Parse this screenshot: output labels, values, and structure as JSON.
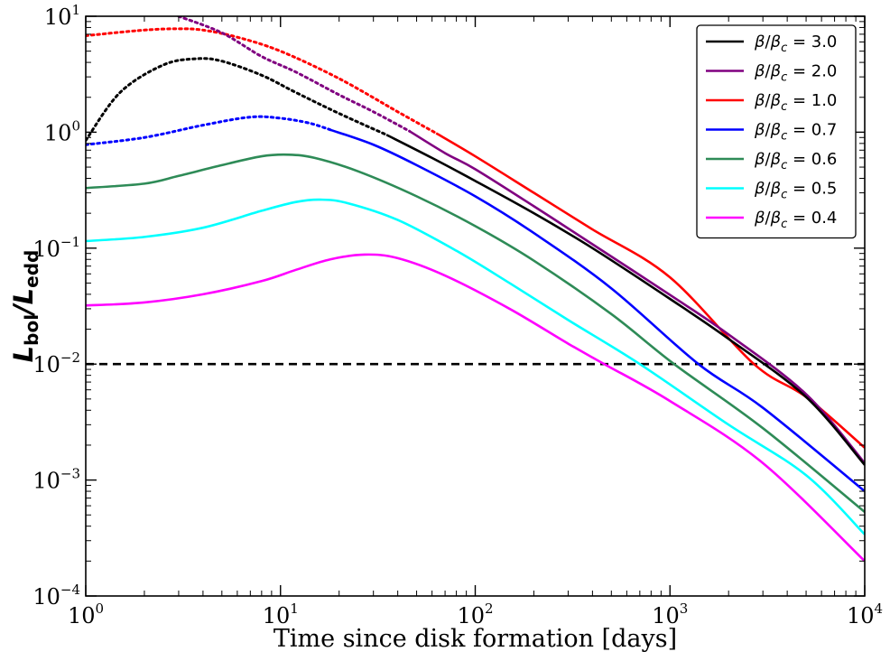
{
  "chart_data": {
    "type": "line",
    "x_scale": "log",
    "y_scale": "log",
    "xlim": [
      1,
      10000
    ],
    "ylim": [
      0.0001,
      10
    ],
    "xlabel": "Time since disk formation [days]",
    "ylabel": {
      "main": "L",
      "sub1": "bol",
      "sep": "/",
      "sub2": "edd"
    },
    "x_ticks": [
      {
        "value": 1,
        "base": "10",
        "exp": "0"
      },
      {
        "value": 10,
        "base": "10",
        "exp": "1"
      },
      {
        "value": 100,
        "base": "10",
        "exp": "2"
      },
      {
        "value": 1000,
        "base": "10",
        "exp": "3"
      },
      {
        "value": 10000,
        "base": "10",
        "exp": "4"
      }
    ],
    "y_ticks": [
      {
        "value": 0.0001,
        "base": "10",
        "exp": "−4"
      },
      {
        "value": 0.001,
        "base": "10",
        "exp": "−3"
      },
      {
        "value": 0.01,
        "base": "10",
        "exp": "−2"
      },
      {
        "value": 0.1,
        "base": "10",
        "exp": "−1"
      },
      {
        "value": 1,
        "base": "10",
        "exp": "0"
      },
      {
        "value": 10,
        "base": "10",
        "exp": "1"
      }
    ],
    "legend_position": "top-right",
    "series": [
      {
        "name": "β/βc = 3.0",
        "symbol": "β",
        "sub": "c",
        "eq": " = 3.0",
        "color": "#000000",
        "dotted_until": 35,
        "points": [
          [
            1,
            0.85
          ],
          [
            1.5,
            2.2
          ],
          [
            2.5,
            3.8
          ],
          [
            3.7,
            4.3
          ],
          [
            5,
            4.1
          ],
          [
            8,
            3.1
          ],
          [
            12,
            2.2
          ],
          [
            20,
            1.45
          ],
          [
            35,
            0.95
          ],
          [
            60,
            0.6
          ],
          [
            100,
            0.38
          ],
          [
            200,
            0.2
          ],
          [
            400,
            0.1
          ],
          [
            1000,
            0.0365
          ],
          [
            2000,
            0.0165
          ],
          [
            5000,
            0.0052
          ],
          [
            10000,
            0.00135
          ]
        ]
      },
      {
        "name": "β/βc = 2.0",
        "symbol": "β",
        "sub": "c",
        "eq": " = 2.0",
        "color": "#800080",
        "dotted_until": 46,
        "points": [
          [
            3.0,
            10
          ],
          [
            5,
            7.2
          ],
          [
            8,
            4.5
          ],
          [
            12,
            3.3
          ],
          [
            20,
            2.1
          ],
          [
            30,
            1.5
          ],
          [
            46,
            1.02
          ],
          [
            70,
            0.66
          ],
          [
            100,
            0.48
          ],
          [
            200,
            0.23
          ],
          [
            400,
            0.108
          ],
          [
            1000,
            0.0395
          ],
          [
            2000,
            0.018
          ],
          [
            5000,
            0.0055
          ],
          [
            10000,
            0.0014
          ]
        ]
      },
      {
        "name": "β/βc = 1.0",
        "symbol": "β",
        "sub": "c",
        "eq": " = 1.0",
        "color": "#ff0000",
        "dotted_until": 63,
        "points": [
          [
            1,
            6.8
          ],
          [
            2,
            7.6
          ],
          [
            3,
            7.8
          ],
          [
            4,
            7.6
          ],
          [
            6,
            6.6
          ],
          [
            10,
            5
          ],
          [
            20,
            2.9
          ],
          [
            40,
            1.5
          ],
          [
            63,
            0.98
          ],
          [
            100,
            0.62
          ],
          [
            200,
            0.3
          ],
          [
            400,
            0.145
          ],
          [
            1000,
            0.056
          ],
          [
            2700,
            0.01
          ],
          [
            5000,
            0.0052
          ],
          [
            10000,
            0.0019
          ]
        ]
      },
      {
        "name": "β/βc = 0.7",
        "symbol": "β",
        "sub": "c",
        "eq": " = 0.7",
        "color": "#0000ff",
        "dotted_until": 18,
        "points": [
          [
            1,
            0.78
          ],
          [
            2,
            0.9
          ],
          [
            4,
            1.15
          ],
          [
            7,
            1.35
          ],
          [
            10,
            1.32
          ],
          [
            14,
            1.2
          ],
          [
            18,
            1.05
          ],
          [
            30,
            0.78
          ],
          [
            50,
            0.52
          ],
          [
            100,
            0.28
          ],
          [
            200,
            0.135
          ],
          [
            500,
            0.045
          ],
          [
            1400,
            0.01
          ],
          [
            3000,
            0.0042
          ],
          [
            10000,
            0.0008
          ]
        ]
      },
      {
        "name": "β/βc = 0.6",
        "symbol": "β",
        "sub": "c",
        "eq": " = 0.6",
        "color": "#2e8b57",
        "dotted_until": 0,
        "points": [
          [
            1,
            0.33
          ],
          [
            2,
            0.36
          ],
          [
            3,
            0.42
          ],
          [
            5,
            0.52
          ],
          [
            8,
            0.62
          ],
          [
            11,
            0.64
          ],
          [
            15,
            0.6
          ],
          [
            25,
            0.46
          ],
          [
            50,
            0.28
          ],
          [
            100,
            0.155
          ],
          [
            200,
            0.078
          ],
          [
            500,
            0.027
          ],
          [
            1050,
            0.01
          ],
          [
            3000,
            0.0028
          ],
          [
            10000,
            0.00053
          ]
        ]
      },
      {
        "name": "β/βc = 0.5",
        "symbol": "β",
        "sub": "c",
        "eq": " = 0.5",
        "color": "#00ffff",
        "dotted_until": 0,
        "points": [
          [
            1,
            0.115
          ],
          [
            2,
            0.125
          ],
          [
            4,
            0.15
          ],
          [
            8,
            0.21
          ],
          [
            12,
            0.25
          ],
          [
            16,
            0.262
          ],
          [
            22,
            0.245
          ],
          [
            40,
            0.175
          ],
          [
            80,
            0.095
          ],
          [
            150,
            0.05
          ],
          [
            300,
            0.024
          ],
          [
            700,
            0.01
          ],
          [
            2000,
            0.003
          ],
          [
            5000,
            0.0011
          ],
          [
            10000,
            0.00034
          ]
        ]
      },
      {
        "name": "β/βc = 0.4",
        "symbol": "β",
        "sub": "c",
        "eq": " = 0.4",
        "color": "#ff00ff",
        "dotted_until": 0,
        "points": [
          [
            1,
            0.032
          ],
          [
            2,
            0.034
          ],
          [
            4,
            0.04
          ],
          [
            8,
            0.052
          ],
          [
            12,
            0.065
          ],
          [
            18,
            0.08
          ],
          [
            27,
            0.088
          ],
          [
            40,
            0.082
          ],
          [
            70,
            0.058
          ],
          [
            150,
            0.03
          ],
          [
            300,
            0.015
          ],
          [
            460,
            0.01
          ],
          [
            1000,
            0.0048
          ],
          [
            3000,
            0.0014
          ],
          [
            10000,
            0.0002
          ]
        ]
      }
    ],
    "reference_line": {
      "y": 0.01,
      "style": "dashed",
      "color": "#000000"
    }
  }
}
